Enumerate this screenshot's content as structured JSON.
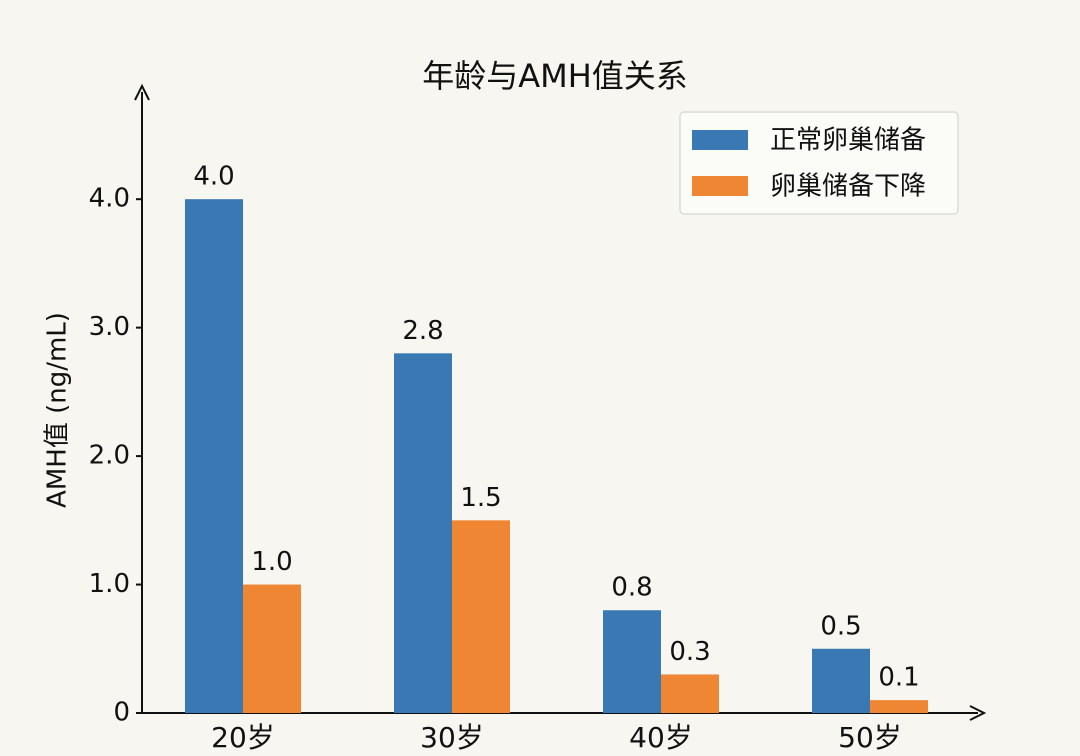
{
  "chart_data": {
    "type": "bar",
    "title": "年龄与AMH值关系",
    "y_label": "AMH值 (ng/mL)",
    "categories": [
      "20岁",
      "30岁",
      "40岁",
      "50岁"
    ],
    "series": [
      {
        "name": "正常卵巢储备",
        "color": "#3a78b4",
        "values": [
          4,
          2.8,
          0.8,
          0.5
        ],
        "value_labels": [
          "4.0",
          "2.8",
          "0.8",
          "0.5"
        ]
      },
      {
        "name": "卵巢储备下降",
        "color": "#ef8634",
        "values": [
          1,
          1.5,
          0.3,
          0.1
        ],
        "value_labels": [
          "1.0",
          "1.5",
          "0.3",
          "0.1"
        ]
      }
    ],
    "ylim": [
      0,
      4.85
    ],
    "yticks": [
      0,
      {
        "value": 1,
        "label": "1.0"
      },
      {
        "value": 2,
        "label": "2.0"
      },
      {
        "value": 3,
        "label": "3.0"
      },
      {
        "value": 4,
        "label": "4.0"
      }
    ],
    "grid": false,
    "legend": "upper right"
  }
}
